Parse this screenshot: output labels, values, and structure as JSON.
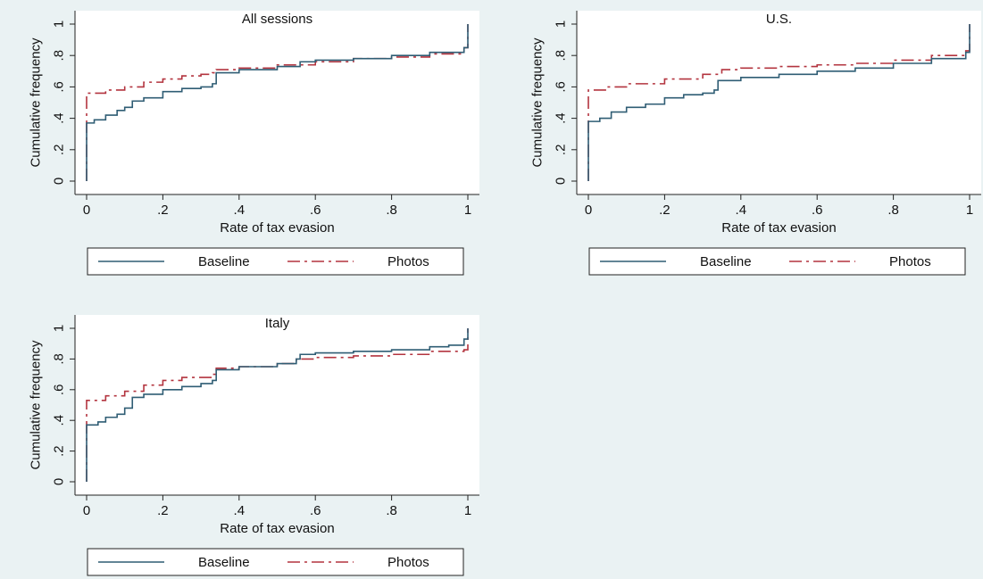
{
  "colors": {
    "background": "#eaf2f3",
    "plot_area": "#ffffff",
    "baseline": "#2f5d74",
    "photos": "#b3343f"
  },
  "chart_data": [
    {
      "type": "line",
      "title": "All sessions",
      "xlabel": "Rate of tax evasion",
      "ylabel": "Cumulative frequency",
      "xlim": [
        0,
        1
      ],
      "ylim": [
        0,
        1
      ],
      "xticks": [
        "0",
        ".2",
        ".4",
        ".6",
        ".8",
        "1"
      ],
      "yticks": [
        "0",
        ".2",
        ".4",
        ".6",
        ".8",
        "1"
      ],
      "legend": "bottom",
      "series": [
        {
          "name": "Baseline",
          "style": "solid",
          "x": [
            0,
            0,
            0.02,
            0.05,
            0.08,
            0.1,
            0.12,
            0.15,
            0.2,
            0.25,
            0.3,
            0.33,
            0.34,
            0.4,
            0.5,
            0.56,
            0.6,
            0.7,
            0.8,
            0.9,
            0.99,
            1.0,
            1.0
          ],
          "y": [
            0,
            0.37,
            0.39,
            0.42,
            0.45,
            0.47,
            0.51,
            0.53,
            0.57,
            0.59,
            0.6,
            0.62,
            0.69,
            0.71,
            0.73,
            0.76,
            0.77,
            0.78,
            0.8,
            0.82,
            0.85,
            0.86,
            1.0
          ]
        },
        {
          "name": "Photos",
          "style": "dashdot",
          "x": [
            0,
            0,
            0.05,
            0.1,
            0.15,
            0.2,
            0.25,
            0.3,
            0.33,
            0.34,
            0.4,
            0.5,
            0.6,
            0.7,
            0.8,
            0.9,
            0.99,
            1.0,
            1.0
          ],
          "y": [
            0,
            0.56,
            0.58,
            0.6,
            0.63,
            0.65,
            0.67,
            0.68,
            0.69,
            0.71,
            0.72,
            0.74,
            0.76,
            0.78,
            0.79,
            0.81,
            0.85,
            0.86,
            1.0
          ]
        }
      ]
    },
    {
      "type": "line",
      "title": "U.S.",
      "xlabel": "Rate of tax evasion",
      "ylabel": "Cumulative frequency",
      "xlim": [
        0,
        1
      ],
      "ylim": [
        0,
        1
      ],
      "xticks": [
        "0",
        ".2",
        ".4",
        ".6",
        ".8",
        "1"
      ],
      "yticks": [
        "0",
        ".2",
        ".4",
        ".6",
        ".8",
        "1"
      ],
      "legend": "bottom",
      "series": [
        {
          "name": "Baseline",
          "style": "solid",
          "x": [
            0,
            0,
            0.03,
            0.06,
            0.1,
            0.15,
            0.2,
            0.25,
            0.3,
            0.33,
            0.34,
            0.4,
            0.5,
            0.6,
            0.7,
            0.8,
            0.9,
            0.99,
            1.0,
            1.0
          ],
          "y": [
            0,
            0.38,
            0.4,
            0.44,
            0.47,
            0.49,
            0.53,
            0.55,
            0.56,
            0.58,
            0.64,
            0.66,
            0.68,
            0.7,
            0.72,
            0.75,
            0.78,
            0.82,
            0.83,
            1.0
          ]
        },
        {
          "name": "Photos",
          "style": "dashdot",
          "x": [
            0,
            0,
            0.05,
            0.1,
            0.2,
            0.3,
            0.35,
            0.4,
            0.5,
            0.6,
            0.7,
            0.8,
            0.9,
            0.99,
            1.0,
            1.0
          ],
          "y": [
            0,
            0.58,
            0.6,
            0.62,
            0.65,
            0.68,
            0.71,
            0.72,
            0.73,
            0.74,
            0.75,
            0.77,
            0.8,
            0.83,
            0.84,
            1.0
          ]
        }
      ]
    },
    {
      "type": "line",
      "title": "Italy",
      "xlabel": "Rate of tax evasion",
      "ylabel": "Cumulative frequency",
      "xlim": [
        0,
        1
      ],
      "ylim": [
        0,
        1
      ],
      "xticks": [
        "0",
        ".2",
        ".4",
        ".6",
        ".8",
        "1"
      ],
      "yticks": [
        "0",
        ".2",
        ".4",
        ".6",
        ".8",
        "1"
      ],
      "legend": "bottom",
      "series": [
        {
          "name": "Baseline",
          "style": "solid",
          "x": [
            0,
            0,
            0.03,
            0.05,
            0.08,
            0.1,
            0.12,
            0.15,
            0.2,
            0.25,
            0.3,
            0.33,
            0.34,
            0.4,
            0.5,
            0.55,
            0.56,
            0.6,
            0.7,
            0.78,
            0.8,
            0.9,
            0.95,
            0.99,
            1.0,
            1.0
          ],
          "y": [
            0,
            0.37,
            0.39,
            0.42,
            0.44,
            0.48,
            0.55,
            0.57,
            0.6,
            0.62,
            0.64,
            0.66,
            0.73,
            0.75,
            0.77,
            0.8,
            0.83,
            0.84,
            0.85,
            0.85,
            0.86,
            0.88,
            0.89,
            0.93,
            0.94,
            1.0
          ]
        },
        {
          "name": "Photos",
          "style": "dashdot",
          "x": [
            0,
            0,
            0.05,
            0.1,
            0.15,
            0.2,
            0.25,
            0.33,
            0.34,
            0.4,
            0.5,
            0.55,
            0.6,
            0.7,
            0.8,
            0.9,
            0.99,
            1.0,
            1.0
          ],
          "y": [
            0,
            0.53,
            0.56,
            0.59,
            0.63,
            0.66,
            0.68,
            0.7,
            0.74,
            0.75,
            0.77,
            0.8,
            0.81,
            0.82,
            0.83,
            0.85,
            0.86,
            0.87,
            1.0
          ]
        }
      ]
    }
  ]
}
